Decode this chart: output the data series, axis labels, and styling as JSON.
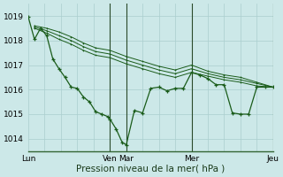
{
  "background_color": "#cce8e8",
  "grid_color": "#aacece",
  "line_color": "#1a5c1a",
  "marker_color": "#1a5c1a",
  "ylabel_ticks": [
    1014,
    1015,
    1016,
    1017,
    1018,
    1019
  ],
  "xlim": [
    0,
    120
  ],
  "ylim": [
    1013.5,
    1019.5
  ],
  "xlabel": "Pression niveau de la mer( hPa )",
  "x_tick_positions": [
    0,
    40,
    48,
    80,
    120
  ],
  "x_tick_labels": [
    "Lun",
    "Ven",
    "Mar",
    "Mer",
    "Jeu"
  ],
  "vlines": [
    40,
    48,
    80,
    120
  ],
  "series1_x": [
    0,
    3,
    6,
    9,
    12,
    15,
    18,
    21,
    24,
    27,
    30,
    33,
    36,
    39,
    40,
    43,
    46,
    48,
    52,
    56,
    60,
    64,
    68,
    72,
    76,
    80,
    84,
    88,
    92,
    96,
    100,
    104,
    108,
    112,
    116,
    120
  ],
  "series1_y": [
    1018.95,
    1018.05,
    1018.5,
    1018.2,
    1017.25,
    1016.85,
    1016.5,
    1016.1,
    1016.05,
    1015.7,
    1015.5,
    1015.1,
    1015.0,
    1014.9,
    1014.8,
    1014.4,
    1013.85,
    1013.75,
    1015.15,
    1015.05,
    1016.05,
    1016.1,
    1015.95,
    1016.05,
    1016.05,
    1016.7,
    1016.6,
    1016.45,
    1016.2,
    1016.2,
    1015.05,
    1015.0,
    1015.0,
    1016.1,
    1016.1,
    1016.1
  ],
  "series2_x": [
    3,
    9,
    15,
    21,
    27,
    33,
    40,
    48,
    56,
    64,
    72,
    80,
    88,
    96,
    104,
    112,
    120
  ],
  "series2_y": [
    1018.5,
    1018.3,
    1018.05,
    1017.85,
    1017.6,
    1017.4,
    1017.3,
    1017.05,
    1016.85,
    1016.65,
    1016.5,
    1016.7,
    1016.55,
    1016.4,
    1016.3,
    1016.15,
    1016.1
  ],
  "series3_x": [
    3,
    9,
    15,
    21,
    27,
    33,
    40,
    48,
    56,
    64,
    72,
    80,
    88,
    96,
    104,
    112,
    120
  ],
  "series3_y": [
    1018.55,
    1018.4,
    1018.2,
    1018.0,
    1017.75,
    1017.55,
    1017.45,
    1017.2,
    1017.0,
    1016.8,
    1016.65,
    1016.85,
    1016.65,
    1016.5,
    1016.4,
    1016.25,
    1016.1
  ],
  "series4_x": [
    3,
    9,
    15,
    21,
    27,
    33,
    40,
    48,
    56,
    64,
    72,
    80,
    88,
    96,
    104,
    112,
    120
  ],
  "series4_y": [
    1018.6,
    1018.5,
    1018.35,
    1018.15,
    1017.9,
    1017.7,
    1017.6,
    1017.35,
    1017.15,
    1016.95,
    1016.8,
    1017.0,
    1016.75,
    1016.6,
    1016.5,
    1016.3,
    1016.1
  ]
}
